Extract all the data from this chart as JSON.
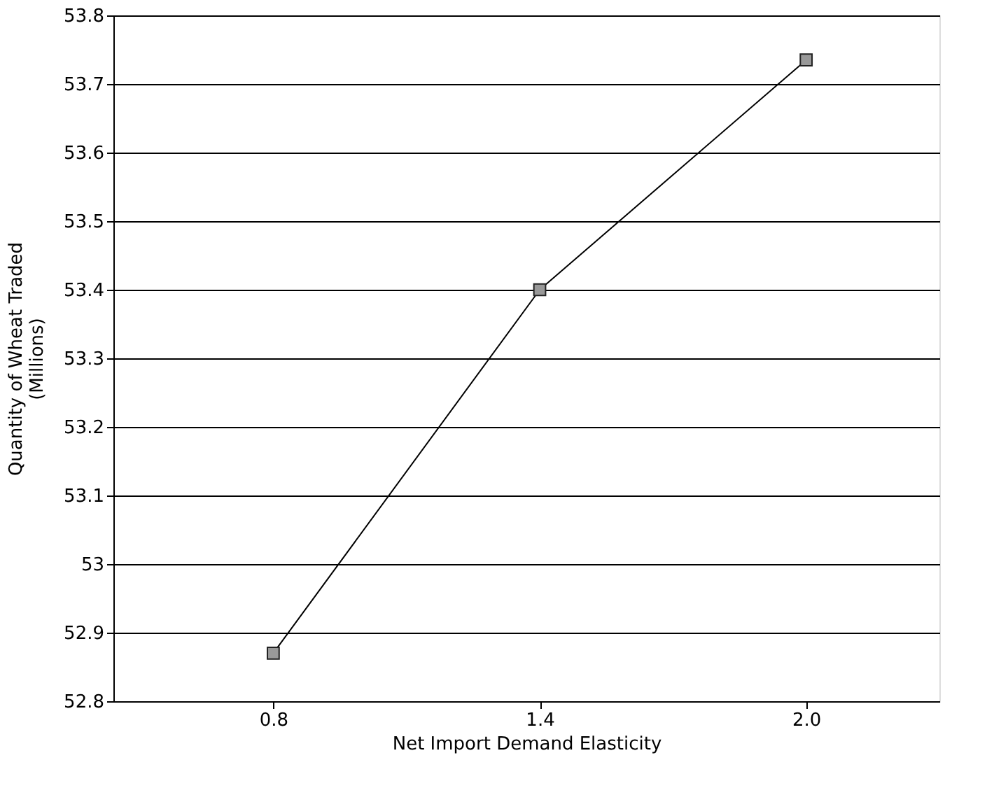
{
  "chart_data": {
    "type": "line",
    "xlabel": "Net Import Demand Elasticity",
    "ylabel": "Quantity of Wheat Traded\n(Millions)",
    "categories": [
      "0.8",
      "1.4",
      "2.0"
    ],
    "series": [
      {
        "color": "#000000",
        "values": [
          52.87,
          53.4,
          53.735
        ]
      }
    ],
    "ylim": [
      52.8,
      53.8
    ],
    "yticks": [
      52.8,
      52.9,
      53,
      53.1,
      53.2,
      53.3,
      53.4,
      53.5,
      53.6,
      53.7,
      53.8
    ],
    "grid": "y",
    "marker": "square",
    "line_style": "solid"
  }
}
